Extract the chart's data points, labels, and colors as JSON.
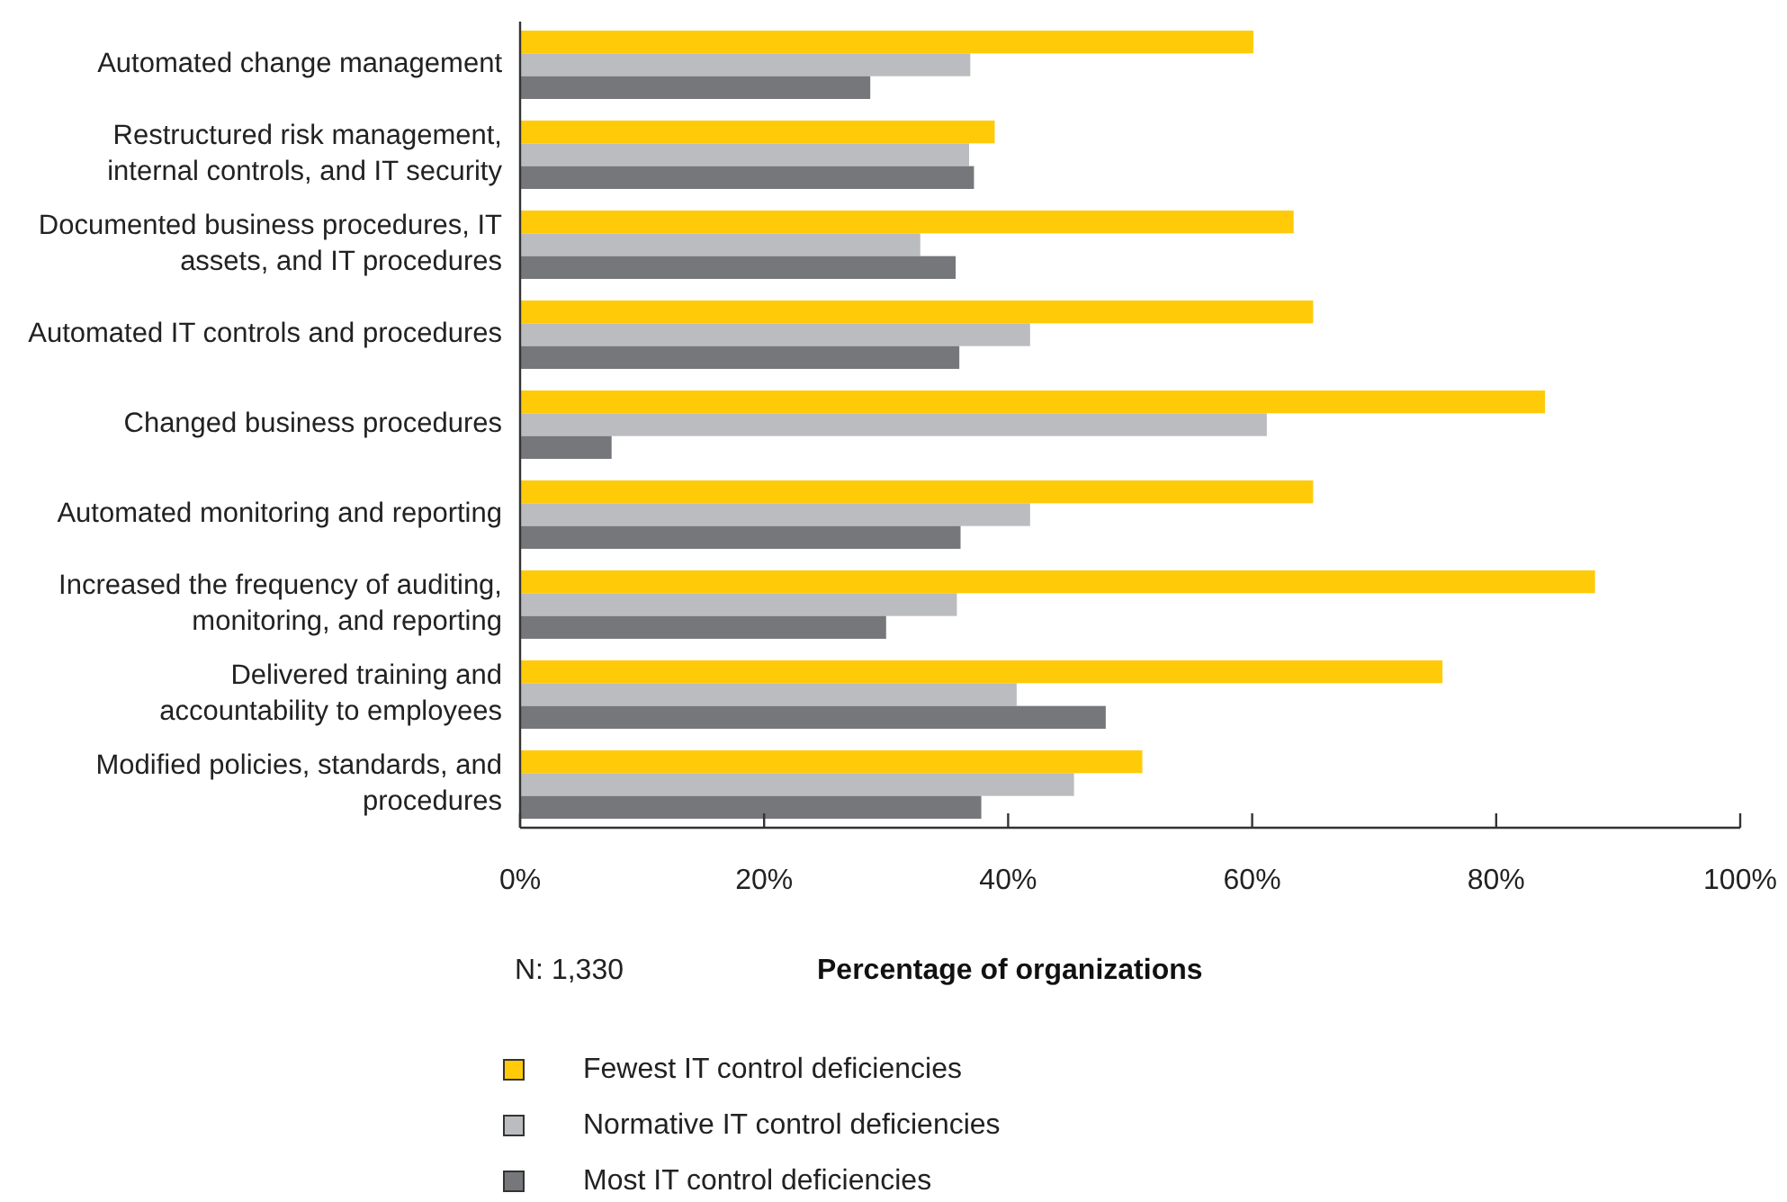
{
  "chart_data": {
    "type": "bar",
    "orientation": "horizontal",
    "xlabel": "Percentage of organizations",
    "annotations": [
      "N: 1,330"
    ],
    "categories": [
      "Automated change management",
      "Restructured risk management, internal controls, and IT security",
      "Documented business procedures, IT assets, and IT procedures",
      "Automated IT controls and procedures",
      "Changed business procedures",
      "Automated monitoring and reporting",
      "Increased the frequency of auditing, monitoring, and reporting",
      "Delivered training and accountability to employees",
      "Modified policies, standards, and procedures"
    ],
    "series": [
      {
        "name": "Fewest IT control deficiencies",
        "color": "#ffcb08",
        "values": [
          60.1,
          38.9,
          63.4,
          65.0,
          84.0,
          65.0,
          88.1,
          75.6,
          51.0
        ]
      },
      {
        "name": "Normative IT control deficiencies",
        "color": "#bbbcbf",
        "values": [
          36.9,
          36.8,
          32.8,
          41.8,
          61.2,
          41.8,
          35.8,
          40.7,
          45.4
        ]
      },
      {
        "name": "Most IT control deficiencies",
        "color": "#76777b",
        "values": [
          28.7,
          37.2,
          35.7,
          36.0,
          7.5,
          36.1,
          30.0,
          48.0,
          37.8
        ]
      }
    ],
    "xlim": [
      0,
      100
    ],
    "xticks": [
      {
        "value": 0,
        "label": "0%"
      },
      {
        "value": 20,
        "label": "20%"
      },
      {
        "value": 40,
        "label": "40%"
      },
      {
        "value": 60,
        "label": "60%"
      },
      {
        "value": 80,
        "label": "80%"
      },
      {
        "value": 100,
        "label": "100%"
      }
    ],
    "grid": false,
    "legend": "bottom"
  }
}
